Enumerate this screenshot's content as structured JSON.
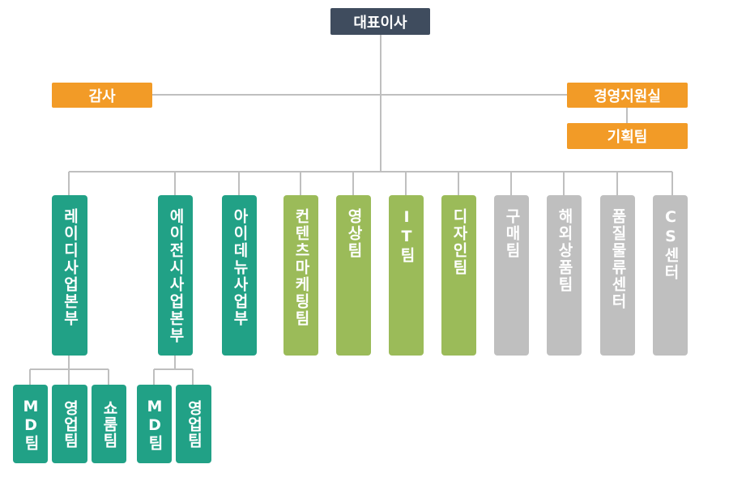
{
  "ceo": {
    "label": "대표이사"
  },
  "audit": {
    "label": "감사"
  },
  "management_support": {
    "label": "경영지원실"
  },
  "planning": {
    "label": "기획팀"
  },
  "departments": [
    {
      "key": "lady",
      "label": "레이디사업본부",
      "color": "teal"
    },
    {
      "key": "ajc",
      "label": "에이전시사업본부",
      "color": "teal"
    },
    {
      "key": "aidenu",
      "label": "아이데뉴사업부",
      "color": "teal"
    },
    {
      "key": "contents",
      "label": "컨텐츠마케팅팀",
      "color": "green"
    },
    {
      "key": "video",
      "label": "영상팀",
      "color": "green"
    },
    {
      "key": "it",
      "label": "IT팀",
      "color": "green"
    },
    {
      "key": "design",
      "label": "디자인팀",
      "color": "green"
    },
    {
      "key": "purchase",
      "label": "구매팀",
      "color": "gray"
    },
    {
      "key": "overseas",
      "label": "해외상품팀",
      "color": "gray"
    },
    {
      "key": "quality",
      "label": "품질물류센터",
      "color": "gray"
    },
    {
      "key": "cs",
      "label": "CS센터",
      "color": "gray"
    }
  ],
  "lady_teams": [
    {
      "label": "MD팀"
    },
    {
      "label": "영업팀"
    },
    {
      "label": "쇼룸팀"
    }
  ],
  "ajc_teams": [
    {
      "label": "MD팀"
    },
    {
      "label": "영업팀"
    }
  ],
  "colors": {
    "navy": "#3f4c5e",
    "orange": "#f29b27",
    "teal": "#21a186",
    "green": "#9bbb59",
    "gray": "#bfbfbf",
    "connector": "#bfbfbf"
  }
}
